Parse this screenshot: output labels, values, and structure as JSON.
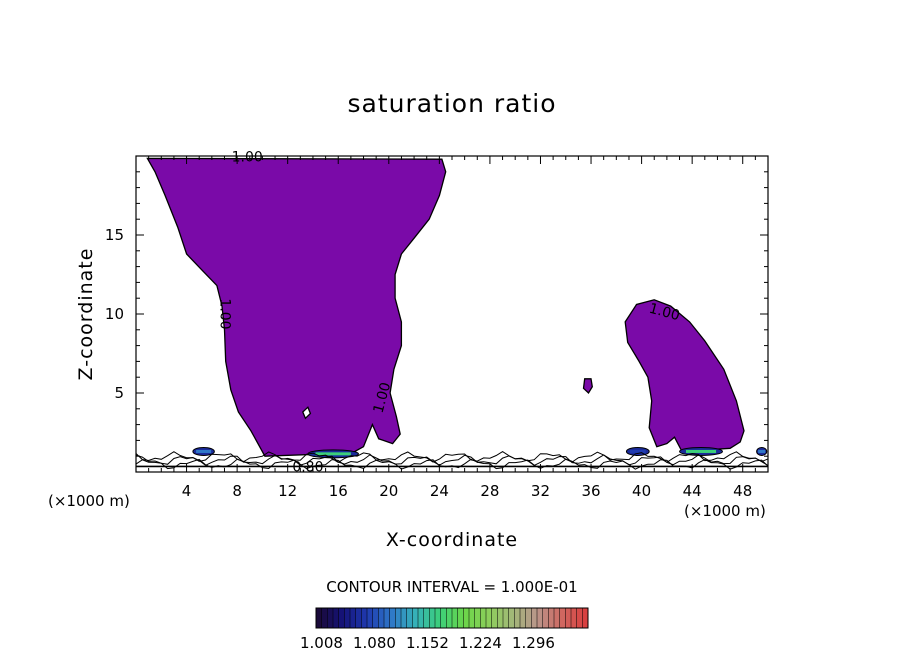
{
  "chart_data": {
    "type": "filled-contour",
    "title": "saturation ratio",
    "xlabel": "X-coordinate",
    "ylabel": "Z-coordinate",
    "x_unit_label": "(×1000 m)",
    "y_unit_label": "(×1000 m)",
    "xlim": [
      0,
      50
    ],
    "ylim": [
      0,
      20
    ],
    "xticks": [
      {
        "value": 4,
        "label": "4"
      },
      {
        "value": 8,
        "label": "8"
      },
      {
        "value": 12,
        "label": "12"
      },
      {
        "value": 16,
        "label": "16"
      },
      {
        "value": 20,
        "label": "20"
      },
      {
        "value": 24,
        "label": "24"
      },
      {
        "value": 28,
        "label": "28"
      },
      {
        "value": 32,
        "label": "32"
      },
      {
        "value": 36,
        "label": "36"
      },
      {
        "value": 40,
        "label": "40"
      },
      {
        "value": 44,
        "label": "44"
      },
      {
        "value": 48,
        "label": "48"
      }
    ],
    "yticks": [
      {
        "value": 5,
        "label": "5"
      },
      {
        "value": 10,
        "label": "10"
      },
      {
        "value": 15,
        "label": "15"
      }
    ],
    "contour_interval_label": "CONTOUR INTERVAL = 1.000E-01",
    "contour_labels": [
      {
        "text": "1.00",
        "x": 8.8,
        "z": 19.9,
        "rotate": 0
      },
      {
        "text": "1.00",
        "x": 7.0,
        "z": 10.0,
        "rotate": 90
      },
      {
        "text": "1.00",
        "x": 19.5,
        "z": 4.7,
        "rotate": -75
      },
      {
        "text": "1.00",
        "x": 41.8,
        "z": 10.1,
        "rotate": 15
      },
      {
        "text": "0.80",
        "x": 13.6,
        "z": 0.3,
        "rotate": 0
      }
    ],
    "colorbar": {
      "tick_labels": [
        "1.008",
        "1.080",
        "1.152",
        "1.224",
        "1.296"
      ],
      "colors": [
        "#1a0a3a",
        "#15137a",
        "#1f3ab0",
        "#2f78c8",
        "#36b2b8",
        "#3ccf7a",
        "#6bd64a",
        "#8ccf5a",
        "#a2b878",
        "#b9958a",
        "#cf6a62",
        "#d84040"
      ]
    },
    "regions": [
      {
        "name": "left-plume",
        "value": 1.0,
        "outline": [
          [
            0.9,
            19.85
          ],
          [
            24.2,
            19.8
          ],
          [
            24.5,
            19.0
          ],
          [
            24.0,
            17.5
          ],
          [
            23.2,
            16.0
          ],
          [
            22.0,
            14.8
          ],
          [
            21.0,
            13.8
          ],
          [
            20.5,
            12.5
          ],
          [
            20.5,
            11.0
          ],
          [
            21.0,
            9.5
          ],
          [
            21.0,
            8.0
          ],
          [
            20.4,
            6.5
          ],
          [
            20.1,
            5.0
          ],
          [
            20.6,
            3.5
          ],
          [
            20.9,
            2.4
          ],
          [
            20.3,
            1.8
          ],
          [
            19.2,
            2.1
          ],
          [
            18.7,
            3.0
          ],
          [
            18.0,
            1.6
          ],
          [
            17.1,
            1.2
          ],
          [
            10.2,
            1.0
          ],
          [
            9.1,
            2.6
          ],
          [
            8.1,
            3.8
          ],
          [
            7.5,
            5.2
          ],
          [
            7.1,
            7.0
          ],
          [
            7.0,
            9.0
          ],
          [
            6.8,
            10.5
          ],
          [
            6.4,
            11.8
          ],
          [
            5.2,
            12.8
          ],
          [
            4.0,
            13.8
          ],
          [
            3.3,
            15.5
          ],
          [
            2.3,
            17.5
          ],
          [
            1.5,
            19.0
          ]
        ],
        "holes": [
          [
            [
              13.2,
              3.8
            ],
            [
              13.6,
              4.1
            ],
            [
              13.8,
              3.7
            ],
            [
              13.4,
              3.4
            ]
          ]
        ]
      },
      {
        "name": "right-plume",
        "value": 1.0,
        "outline": [
          [
            38.7,
            9.5
          ],
          [
            39.6,
            10.6
          ],
          [
            41.0,
            10.9
          ],
          [
            42.3,
            10.5
          ],
          [
            43.8,
            9.5
          ],
          [
            45.0,
            8.3
          ],
          [
            46.5,
            6.5
          ],
          [
            47.5,
            4.5
          ],
          [
            48.1,
            2.6
          ],
          [
            47.8,
            1.9
          ],
          [
            47.0,
            1.5
          ],
          [
            43.2,
            1.3
          ],
          [
            42.6,
            2.2
          ],
          [
            42.0,
            1.8
          ],
          [
            41.2,
            1.6
          ],
          [
            40.6,
            2.8
          ],
          [
            40.8,
            4.5
          ],
          [
            40.5,
            6.0
          ],
          [
            39.8,
            7.0
          ],
          [
            38.9,
            8.2
          ]
        ]
      },
      {
        "name": "small-blob",
        "value": 1.0,
        "outline": [
          [
            35.4,
            5.3
          ],
          [
            35.5,
            5.9
          ],
          [
            36.0,
            5.9
          ],
          [
            36.1,
            5.4
          ],
          [
            35.8,
            5.0
          ]
        ]
      }
    ],
    "surface_features": [
      {
        "x0": 4.5,
        "x1": 6.2,
        "z": 1.3,
        "color": "#2f78c8"
      },
      {
        "x0": 13.6,
        "x1": 17.6,
        "z": 1.15,
        "color": "#3ccf7a"
      },
      {
        "x0": 38.8,
        "x1": 40.6,
        "z": 1.3,
        "color": "#1f3ab0"
      },
      {
        "x0": 43.0,
        "x1": 46.4,
        "z": 1.3,
        "color": "#3ccf7a"
      },
      {
        "x0": 49.1,
        "x1": 49.9,
        "z": 1.3,
        "color": "#2f78c8"
      }
    ],
    "fill_color": "#7a0aa8"
  }
}
